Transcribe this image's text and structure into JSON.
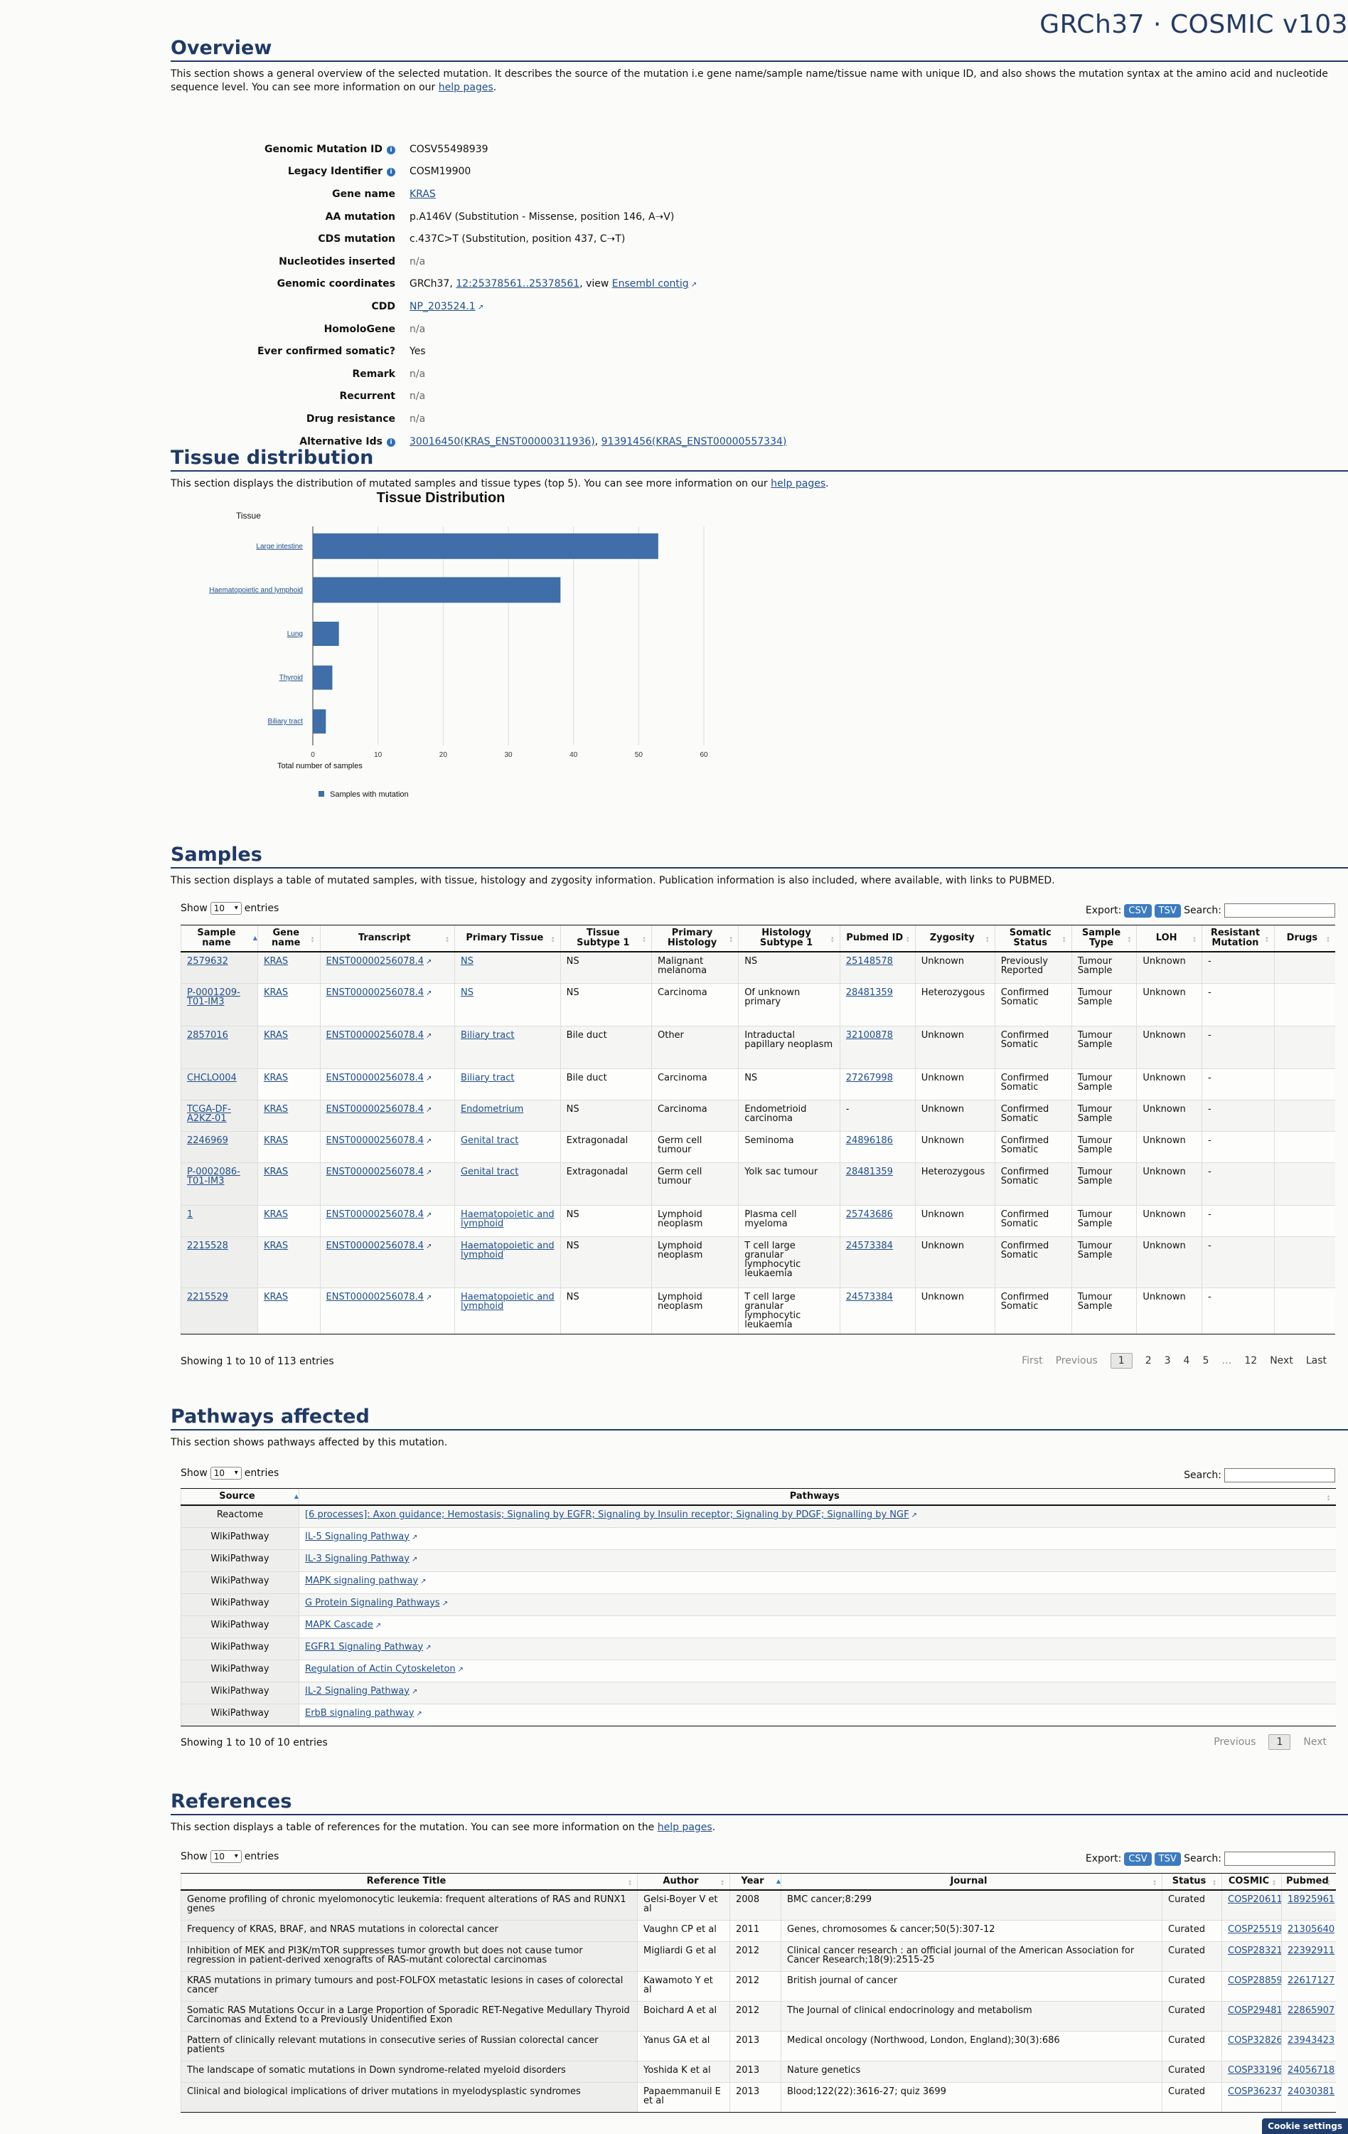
{
  "brand": "GRCh37 · COSMIC v103",
  "overview": {
    "title": "Overview",
    "desc_before": "This section shows a general overview of the selected mutation. It describes the source of the mutation i.e gene name/sample name/tissue name with unique ID, and also shows the mutation syntax at the amino acid and nucleotide sequence level. You can see more information on our ",
    "desc_link": "help pages",
    "desc_after": ".",
    "rows": [
      {
        "label": "Genomic Mutation ID",
        "value": "COSV55498939"
      },
      {
        "label": "Legacy Identifier",
        "value": "COSM19900"
      },
      {
        "label": "Gene name",
        "value": "KRAS"
      },
      {
        "label": "AA mutation",
        "value": "p.A146V (Substitution - Missense, position 146, A➝V)"
      },
      {
        "label": "CDS mutation",
        "value": "c.437C>T (Substitution, position 437, C➝T)"
      },
      {
        "label": "Nucleotides inserted",
        "value": "n/a"
      },
      {
        "label": "Genomic coordinates",
        "value_prefix": "GRCh37, ",
        "value_link": "12:25378561..25378561",
        "value_mid": ", view ",
        "value_link2": "Ensembl contig"
      },
      {
        "label": "CDD",
        "value": "NP_203524.1"
      },
      {
        "label": "HomoloGene",
        "value": "n/a"
      },
      {
        "label": "Ever confirmed somatic?",
        "value": "Yes"
      },
      {
        "label": "Remark",
        "value": "n/a"
      },
      {
        "label": "Recurrent",
        "value": "n/a"
      },
      {
        "label": "Drug resistance",
        "value": "n/a"
      },
      {
        "label": "Alternative Ids",
        "value_link": "30016450(KRAS_ENST00000311936)",
        "value_mid": ", ",
        "value_link2": "91391456(KRAS_ENST00000557334)"
      }
    ]
  },
  "tissue": {
    "title": "Tissue distribution",
    "desc_before": "This section displays the distribution of mutated samples and tissue types (top 5). You can see more information on our ",
    "desc_link": "help pages",
    "desc_after": "."
  },
  "chart_data": {
    "type": "bar",
    "orientation": "horizontal",
    "title": "Tissue Distribution",
    "ylabel": "Tissue",
    "xlabel": "Total number of samples",
    "categories": [
      "Large intestine",
      "Haematopoietic and lymphoid",
      "Lung",
      "Thyroid",
      "Biliary tract"
    ],
    "series": [
      {
        "name": "Samples with mutation",
        "values": [
          53,
          38,
          4,
          3,
          2
        ],
        "color": "#3f6ea8"
      }
    ],
    "xlim": [
      0,
      60
    ],
    "xticks": [
      0,
      10,
      20,
      30,
      40,
      50,
      60
    ],
    "grid": true,
    "legend": "bottom-left"
  },
  "samples": {
    "title": "Samples",
    "desc": "This section displays a table of mutated samples, with tissue, histology and zygosity information. Publication information is also included, where available, with links to PUBMED.",
    "show": "Show",
    "entries": "entries",
    "page_size": "10",
    "export": "Export:",
    "csv": "CSV",
    "tsv": "TSV",
    "search": "Search:",
    "columns": [
      "Sample name",
      "Gene name",
      "Transcript",
      "Primary Tissue",
      "Tissue Subtype 1",
      "Primary Histology",
      "Histology Subtype 1",
      "Pubmed ID",
      "Zygosity",
      "Somatic Status",
      "Sample Type",
      "LOH",
      "Resistant Mutation",
      "Drugs"
    ],
    "rows": [
      [
        "2579632",
        "KRAS",
        "ENST00000256078.4",
        "NS",
        "NS",
        "Malignant melanoma",
        "NS",
        "25148578",
        "Unknown",
        "Previously Reported",
        "Tumour Sample",
        "Unknown",
        "-",
        ""
      ],
      [
        "P-0001209-T01-IM3",
        "KRAS",
        "ENST00000256078.4",
        "NS",
        "NS",
        "Carcinoma",
        "Of unknown primary",
        "28481359",
        "Heterozygous",
        "Confirmed Somatic",
        "Tumour Sample",
        "Unknown",
        "-",
        ""
      ],
      [
        "2857016",
        "KRAS",
        "ENST00000256078.4",
        "Biliary tract",
        "Bile duct",
        "Other",
        "Intraductal papillary neoplasm",
        "32100878",
        "Unknown",
        "Confirmed Somatic",
        "Tumour Sample",
        "Unknown",
        "-",
        ""
      ],
      [
        "CHCLO004",
        "KRAS",
        "ENST00000256078.4",
        "Biliary tract",
        "Bile duct",
        "Carcinoma",
        "NS",
        "27267998",
        "Unknown",
        "Confirmed Somatic",
        "Tumour Sample",
        "Unknown",
        "-",
        ""
      ],
      [
        "TCGA-DF-A2KZ-01",
        "KRAS",
        "ENST00000256078.4",
        "Endometrium",
        "NS",
        "Carcinoma",
        "Endometrioid carcinoma",
        "-",
        "Unknown",
        "Confirmed Somatic",
        "Tumour Sample",
        "Unknown",
        "-",
        ""
      ],
      [
        "2246969",
        "KRAS",
        "ENST00000256078.4",
        "Genital tract",
        "Extragonadal",
        "Germ cell tumour",
        "Seminoma",
        "24896186",
        "Unknown",
        "Confirmed Somatic",
        "Tumour Sample",
        "Unknown",
        "-",
        ""
      ],
      [
        "P-0002086-T01-IM3",
        "KRAS",
        "ENST00000256078.4",
        "Genital tract",
        "Extragonadal",
        "Germ cell tumour",
        "Yolk sac tumour",
        "28481359",
        "Heterozygous",
        "Confirmed Somatic",
        "Tumour Sample",
        "Unknown",
        "-",
        ""
      ],
      [
        "1",
        "KRAS",
        "ENST00000256078.4",
        "Haematopoietic and lymphoid",
        "NS",
        "Lymphoid neoplasm",
        "Plasma cell myeloma",
        "25743686",
        "Unknown",
        "Confirmed Somatic",
        "Tumour Sample",
        "Unknown",
        "-",
        ""
      ],
      [
        "2215528",
        "KRAS",
        "ENST00000256078.4",
        "Haematopoietic and lymphoid",
        "NS",
        "Lymphoid neoplasm",
        "T cell large granular lymphocytic leukaemia",
        "24573384",
        "Unknown",
        "Confirmed Somatic",
        "Tumour Sample",
        "Unknown",
        "-",
        ""
      ],
      [
        "2215529",
        "KRAS",
        "ENST00000256078.4",
        "Haematopoietic and lymphoid",
        "NS",
        "Lymphoid neoplasm",
        "T cell large granular lymphocytic leukaemia",
        "24573384",
        "Unknown",
        "Confirmed Somatic",
        "Tumour Sample",
        "Unknown",
        "-",
        ""
      ]
    ],
    "info": "Showing 1 to 10 of 113 entries",
    "pager": [
      "First",
      "Previous",
      "1",
      "2",
      "3",
      "4",
      "5",
      "…",
      "12",
      "Next",
      "Last"
    ]
  },
  "pathways": {
    "title": "Pathways affected",
    "desc": "This section shows pathways affected by this mutation.",
    "show": "Show",
    "entries": "entries",
    "page_size": "10",
    "search": "Search:",
    "columns": [
      "Source",
      "Pathways"
    ],
    "rows": [
      [
        "Reactome",
        "[6 processes]: Axon guidance; Hemostasis; Signaling by EGFR; Signaling by Insulin receptor; Signaling by PDGF; Signalling by NGF"
      ],
      [
        "WikiPathway",
        "IL-5 Signaling Pathway"
      ],
      [
        "WikiPathway",
        "IL-3 Signaling Pathway"
      ],
      [
        "WikiPathway",
        "MAPK signaling pathway"
      ],
      [
        "WikiPathway",
        "G Protein Signaling Pathways"
      ],
      [
        "WikiPathway",
        "MAPK Cascade"
      ],
      [
        "WikiPathway",
        "EGFR1 Signaling Pathway"
      ],
      [
        "WikiPathway",
        "Regulation of Actin Cytoskeleton"
      ],
      [
        "WikiPathway",
        "IL-2 Signaling Pathway"
      ],
      [
        "WikiPathway",
        "ErbB signaling pathway"
      ]
    ],
    "info": "Showing 1 to 10 of 10 entries",
    "pager": [
      "Previous",
      "1",
      "Next"
    ]
  },
  "references": {
    "title": "References",
    "desc_before": "This section displays a table of references for the mutation. You can see more information on the ",
    "desc_link": "help pages",
    "desc_after": ".",
    "show": "Show",
    "entries": "entries",
    "page_size": "10",
    "export": "Export:",
    "csv": "CSV",
    "tsv": "TSV",
    "search": "Search:",
    "columns": [
      "Reference Title",
      "Author",
      "Year",
      "Journal",
      "Status",
      "COSMIC",
      "Pubmed"
    ],
    "rows": [
      [
        "Genome profiling of chronic myelomonocytic leukemia: frequent alterations of RAS and RUNX1 genes",
        "Gelsi-Boyer V et al",
        "2008",
        "BMC cancer;8:299",
        "Curated",
        "COSP20611",
        "18925961"
      ],
      [
        "Frequency of KRAS, BRAF, and NRAS mutations in colorectal cancer",
        "Vaughn CP et al",
        "2011",
        "Genes, chromosomes & cancer;50(5):307-12",
        "Curated",
        "COSP25519",
        "21305640"
      ],
      [
        "Inhibition of MEK and PI3K/mTOR suppresses tumor growth but does not cause tumor regression in patient-derived xenografts of RAS-mutant colorectal carcinomas",
        "Migliardi G et al",
        "2012",
        "Clinical cancer research : an official journal of the American Association for Cancer Research;18(9):2515-25",
        "Curated",
        "COSP28321",
        "22392911"
      ],
      [
        "KRAS mutations in primary tumours and post-FOLFOX metastatic lesions in cases of colorectal cancer",
        "Kawamoto Y et al",
        "2012",
        "British journal of cancer",
        "Curated",
        "COSP28859",
        "22617127"
      ],
      [
        "Somatic RAS Mutations Occur in a Large Proportion of Sporadic RET-Negative Medullary Thyroid Carcinomas and Extend to a Previously Unidentified Exon",
        "Boichard A et al",
        "2012",
        "The Journal of clinical endocrinology and metabolism",
        "Curated",
        "COSP29481",
        "22865907"
      ],
      [
        "Pattern of clinically relevant mutations in consecutive series of Russian colorectal cancer patients",
        "Yanus GA et al",
        "2013",
        "Medical oncology (Northwood, London, England);30(3):686",
        "Curated",
        "COSP32826",
        "23943423"
      ],
      [
        "The landscape of somatic mutations in Down syndrome-related myeloid disorders",
        "Yoshida K et al",
        "2013",
        "Nature genetics",
        "Curated",
        "COSP33196",
        "24056718"
      ],
      [
        "Clinical and biological implications of driver mutations in myelodysplastic syndromes",
        "Papaemmanuil E et al",
        "2013",
        "Blood;122(22):3616-27; quiz 3699",
        "Curated",
        "COSP36237",
        "24030381"
      ]
    ]
  },
  "cookie": "Cookie settings"
}
